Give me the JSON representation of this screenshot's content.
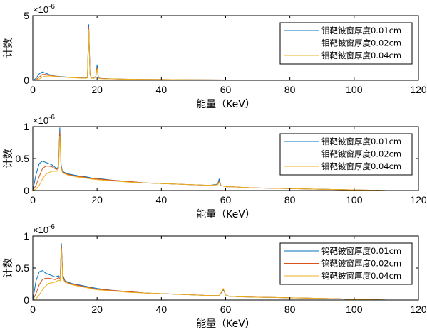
{
  "chart_data": [
    {
      "type": "line",
      "xlabel": "能量（KeV）",
      "ylabel": "计数",
      "y_exponent_label": "×10^-6",
      "xlim": [
        0,
        120
      ],
      "ylim": [
        0,
        5
      ],
      "xticks": [
        0,
        20,
        40,
        60,
        80,
        100,
        120
      ],
      "yticks": [
        0,
        5
      ],
      "legend_position": "top-right",
      "series": [
        {
          "name": "钼靶铍窗厚度0.01cm",
          "color": "#0072BD",
          "x": [
            0,
            1,
            2,
            3,
            4,
            5,
            6,
            7,
            8,
            9,
            10,
            11,
            12,
            13,
            14,
            15,
            16,
            17,
            17.4,
            17.8,
            18.2,
            19,
            19.6,
            20,
            20.4,
            21,
            22,
            24,
            26,
            28,
            30,
            35,
            40,
            50,
            60,
            70,
            80,
            90,
            100,
            110
          ],
          "y": [
            0,
            0.15,
            0.5,
            0.65,
            0.55,
            0.45,
            0.38,
            0.32,
            0.3,
            0.28,
            0.26,
            0.24,
            0.22,
            0.21,
            0.2,
            0.19,
            0.18,
            0.2,
            4.3,
            0.5,
            0.18,
            0.17,
            0.3,
            1.2,
            0.2,
            0.15,
            0.14,
            0.12,
            0.1,
            0.09,
            0.08,
            0.07,
            0.06,
            0.04,
            0.03,
            0.02,
            0.015,
            0.01,
            0.005,
            0
          ]
        },
        {
          "name": "钼靶铍窗厚度0.02cm",
          "color": "#D95319",
          "x": [
            0,
            1,
            2,
            3,
            4,
            5,
            6,
            7,
            8,
            9,
            10,
            11,
            12,
            13,
            14,
            15,
            16,
            17,
            17.4,
            17.8,
            18.2,
            19,
            19.6,
            20,
            20.4,
            21,
            22,
            24,
            26,
            28,
            30,
            35,
            40,
            50,
            60,
            70,
            80,
            90,
            100,
            110
          ],
          "y": [
            0,
            0.05,
            0.25,
            0.45,
            0.45,
            0.4,
            0.36,
            0.31,
            0.29,
            0.27,
            0.25,
            0.23,
            0.21,
            0.2,
            0.19,
            0.18,
            0.17,
            0.19,
            4.1,
            0.45,
            0.17,
            0.16,
            0.28,
            1.0,
            0.18,
            0.14,
            0.13,
            0.11,
            0.1,
            0.09,
            0.08,
            0.07,
            0.06,
            0.04,
            0.03,
            0.02,
            0.015,
            0.01,
            0.005,
            0
          ]
        },
        {
          "name": "钼靶铍窗厚度0.04cm",
          "color": "#EDB120",
          "x": [
            0,
            1,
            2,
            3,
            4,
            5,
            6,
            7,
            8,
            9,
            10,
            11,
            12,
            13,
            14,
            15,
            16,
            17,
            17.4,
            17.8,
            18.2,
            19,
            19.6,
            20,
            20.4,
            21,
            22,
            24,
            26,
            28,
            30,
            35,
            40,
            50,
            60,
            70,
            80,
            90,
            100,
            110
          ],
          "y": [
            0,
            0.02,
            0.1,
            0.25,
            0.33,
            0.33,
            0.32,
            0.29,
            0.28,
            0.26,
            0.24,
            0.22,
            0.2,
            0.19,
            0.18,
            0.17,
            0.16,
            0.18,
            3.9,
            0.4,
            0.16,
            0.15,
            0.26,
            0.9,
            0.17,
            0.13,
            0.12,
            0.11,
            0.1,
            0.09,
            0.08,
            0.07,
            0.06,
            0.04,
            0.03,
            0.02,
            0.015,
            0.01,
            0.005,
            0
          ]
        }
      ]
    },
    {
      "type": "line",
      "xlabel": "能量（KeV）",
      "ylabel": "计数",
      "y_exponent_label": "×10^-6",
      "xlim": [
        0,
        120
      ],
      "ylim": [
        0,
        1
      ],
      "xticks": [
        0,
        20,
        40,
        60,
        80,
        100,
        120
      ],
      "yticks": [
        0,
        0.5,
        1
      ],
      "legend_position": "top-right",
      "series": [
        {
          "name": "钼靶铍窗厚度0.01cm",
          "color": "#0072BD",
          "x": [
            0,
            1,
            2,
            3,
            4,
            5,
            6,
            7,
            7.5,
            8,
            8.4,
            8.8,
            9.2,
            10,
            11,
            12,
            14,
            16,
            18,
            20,
            25,
            30,
            35,
            40,
            45,
            50,
            55,
            57.5,
            58,
            58.5,
            59.3,
            60,
            62,
            65,
            70,
            75,
            80,
            85,
            90,
            95,
            100,
            105,
            110
          ],
          "y": [
            0,
            0.25,
            0.42,
            0.46,
            0.44,
            0.42,
            0.4,
            0.36,
            0.34,
            0.38,
            0.98,
            0.4,
            0.3,
            0.28,
            0.26,
            0.25,
            0.23,
            0.22,
            0.2,
            0.19,
            0.16,
            0.14,
            0.12,
            0.11,
            0.1,
            0.09,
            0.08,
            0.1,
            0.18,
            0.08,
            0.07,
            0.06,
            0.06,
            0.05,
            0.04,
            0.035,
            0.03,
            0.025,
            0.02,
            0.015,
            0.01,
            0.005,
            0
          ]
        },
        {
          "name": "钼靶铍窗厚度0.02cm",
          "color": "#D95319",
          "x": [
            0,
            1,
            2,
            3,
            4,
            5,
            6,
            7,
            7.5,
            8,
            8.4,
            8.8,
            9.2,
            10,
            11,
            12,
            14,
            16,
            18,
            20,
            25,
            30,
            35,
            40,
            45,
            50,
            55,
            57.5,
            58,
            58.5,
            59.3,
            60,
            62,
            65,
            70,
            75,
            80,
            85,
            90,
            95,
            100,
            105,
            110
          ],
          "y": [
            0,
            0.08,
            0.22,
            0.34,
            0.38,
            0.38,
            0.37,
            0.34,
            0.33,
            0.36,
            0.92,
            0.38,
            0.29,
            0.27,
            0.25,
            0.24,
            0.22,
            0.21,
            0.19,
            0.18,
            0.16,
            0.14,
            0.12,
            0.11,
            0.1,
            0.09,
            0.08,
            0.09,
            0.15,
            0.08,
            0.07,
            0.06,
            0.06,
            0.05,
            0.04,
            0.035,
            0.03,
            0.025,
            0.02,
            0.015,
            0.01,
            0.005,
            0
          ]
        },
        {
          "name": "钼靶铍窗厚度0.04cm",
          "color": "#EDB120",
          "x": [
            0,
            1,
            2,
            3,
            4,
            5,
            6,
            7,
            7.5,
            8,
            8.4,
            8.8,
            9.2,
            10,
            11,
            12,
            14,
            16,
            18,
            20,
            25,
            30,
            35,
            40,
            45,
            50,
            55,
            57.5,
            58,
            58.5,
            59.3,
            60,
            62,
            65,
            70,
            75,
            80,
            85,
            90,
            95,
            100,
            105,
            110
          ],
          "y": [
            0,
            0.02,
            0.08,
            0.18,
            0.25,
            0.28,
            0.3,
            0.3,
            0.3,
            0.34,
            0.85,
            0.36,
            0.28,
            0.26,
            0.24,
            0.23,
            0.21,
            0.2,
            0.18,
            0.17,
            0.15,
            0.13,
            0.12,
            0.11,
            0.1,
            0.09,
            0.08,
            0.09,
            0.13,
            0.08,
            0.07,
            0.06,
            0.06,
            0.05,
            0.04,
            0.035,
            0.03,
            0.025,
            0.02,
            0.015,
            0.01,
            0.005,
            0
          ]
        }
      ]
    },
    {
      "type": "line",
      "xlabel": "能量（KeV）",
      "ylabel": "计数",
      "y_exponent_label": "×10^-6",
      "xlim": [
        0,
        120
      ],
      "ylim": [
        0,
        1
      ],
      "xticks": [
        0,
        20,
        40,
        60,
        80,
        100,
        120
      ],
      "yticks": [
        0,
        0.5,
        1
      ],
      "legend_position": "top-right",
      "series": [
        {
          "name": "钨靶铍窗厚度0.01cm",
          "color": "#0072BD",
          "x": [
            0,
            1,
            2,
            3,
            4,
            5,
            6,
            7,
            8,
            8.5,
            8.9,
            9.3,
            10,
            11,
            12,
            14,
            16,
            18,
            20,
            25,
            30,
            35,
            40,
            45,
            50,
            55,
            58,
            59.3,
            60,
            61,
            65,
            70,
            75,
            80,
            85,
            90,
            95,
            100,
            105,
            110
          ],
          "y": [
            0,
            0.3,
            0.44,
            0.46,
            0.42,
            0.4,
            0.38,
            0.36,
            0.38,
            0.35,
            0.88,
            0.4,
            0.3,
            0.28,
            0.26,
            0.24,
            0.22,
            0.2,
            0.18,
            0.15,
            0.13,
            0.11,
            0.1,
            0.09,
            0.08,
            0.07,
            0.07,
            0.16,
            0.08,
            0.06,
            0.05,
            0.045,
            0.04,
            0.035,
            0.03,
            0.025,
            0.02,
            0.01,
            0.005,
            0
          ]
        },
        {
          "name": "钨靶铍窗厚度0.02cm",
          "color": "#D95319",
          "x": [
            0,
            1,
            2,
            3,
            4,
            5,
            6,
            7,
            8,
            8.5,
            8.9,
            9.3,
            10,
            11,
            12,
            14,
            16,
            18,
            20,
            25,
            30,
            35,
            40,
            45,
            50,
            55,
            58,
            59.3,
            60,
            61,
            65,
            70,
            75,
            80,
            85,
            90,
            95,
            100,
            105,
            110
          ],
          "y": [
            0,
            0.1,
            0.24,
            0.32,
            0.34,
            0.34,
            0.33,
            0.32,
            0.35,
            0.33,
            0.84,
            0.37,
            0.29,
            0.27,
            0.25,
            0.23,
            0.21,
            0.19,
            0.17,
            0.15,
            0.13,
            0.11,
            0.1,
            0.09,
            0.08,
            0.07,
            0.07,
            0.17,
            0.08,
            0.06,
            0.05,
            0.045,
            0.04,
            0.035,
            0.03,
            0.025,
            0.02,
            0.01,
            0.005,
            0
          ]
        },
        {
          "name": "钨靶铍窗厚度0.04cm",
          "color": "#EDB120",
          "x": [
            0,
            1,
            2,
            3,
            4,
            5,
            6,
            7,
            8,
            8.5,
            8.9,
            9.3,
            10,
            11,
            12,
            14,
            16,
            18,
            20,
            25,
            30,
            35,
            40,
            45,
            50,
            55,
            58,
            59.3,
            60,
            61,
            65,
            70,
            75,
            80,
            85,
            90,
            95,
            100,
            105,
            110
          ],
          "y": [
            0,
            0.02,
            0.08,
            0.16,
            0.22,
            0.26,
            0.27,
            0.28,
            0.31,
            0.3,
            0.8,
            0.34,
            0.28,
            0.26,
            0.24,
            0.22,
            0.2,
            0.18,
            0.16,
            0.14,
            0.12,
            0.11,
            0.1,
            0.09,
            0.08,
            0.07,
            0.07,
            0.18,
            0.08,
            0.06,
            0.05,
            0.045,
            0.04,
            0.035,
            0.03,
            0.025,
            0.02,
            0.01,
            0.005,
            0
          ]
        }
      ]
    }
  ]
}
